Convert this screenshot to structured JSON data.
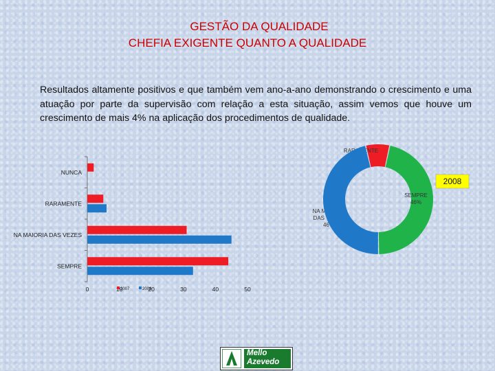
{
  "header": {
    "title": "GESTÃO DA QUALIDADE",
    "subtitle": "CHEFIA EXIGENTE QUANTO A QUALIDADE"
  },
  "paragraph": "Resultados altamente positivos e que também vem ano-a-ano demonstrando o crescimento e uma atuação por parte da supervisão com relação a esta situação, assim vemos que houve um crescimento de mais 4% na aplicação dos procedimentos de qualidade.",
  "chart_data": [
    {
      "type": "bar",
      "orientation": "horizontal",
      "categories": [
        "NUNCA",
        "RARAMENTE",
        "NA MAIORIA DAS VEZES",
        "SEMPRE"
      ],
      "series": [
        {
          "name": "2007",
          "color": "#ee1c25",
          "values": [
            2,
            5,
            31,
            44
          ]
        },
        {
          "name": "2008",
          "color": "#1f78c8",
          "values": [
            0,
            6,
            45,
            33
          ]
        }
      ],
      "xlim": [
        0,
        50
      ],
      "xticks": [
        "0",
        "10",
        "20",
        "30",
        "40",
        "50"
      ],
      "legend": "bottom-left, inside plot"
    },
    {
      "type": "pie",
      "style": "donut",
      "title": "2008",
      "labels": [
        "RARAMENTE\n7%",
        "NA MAIORIA\nDAS VEZES\n46%",
        "SEMPRE\n46%"
      ],
      "values": [
        7,
        46,
        46
      ],
      "colors": [
        "#ee1c25",
        "#1fb34a",
        "#1f78c8"
      ]
    }
  ],
  "logo": {
    "text_line1": "Mello",
    "text_line2": "Azevedo"
  }
}
